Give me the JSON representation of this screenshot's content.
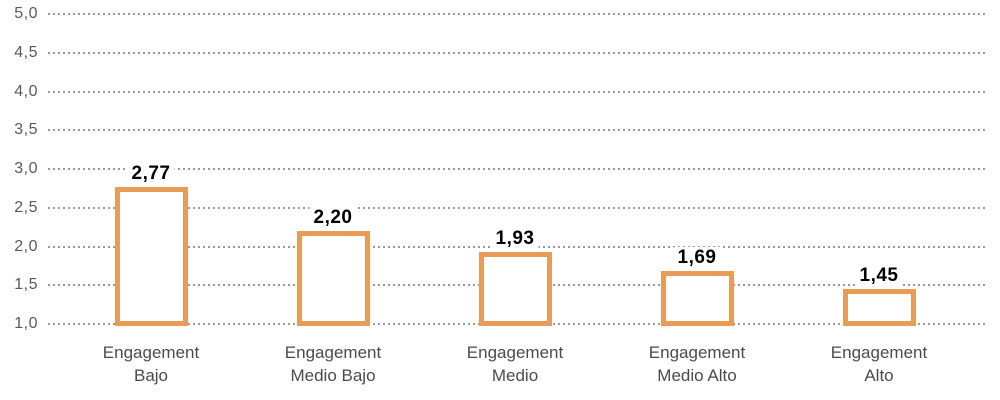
{
  "chart_data": {
    "type": "bar",
    "title": "",
    "xlabel": "",
    "ylabel": "",
    "categories": [
      "Engagement Bajo",
      "Engagement Medio Bajo",
      "Engagement Medio",
      "Engagement Medio Alto",
      "Engagement Alto"
    ],
    "categories_lines": [
      [
        "Engagement",
        "Bajo"
      ],
      [
        "Engagement",
        "Medio Bajo"
      ],
      [
        "Engagement",
        "Medio"
      ],
      [
        "Engagement",
        "Medio Alto"
      ],
      [
        "Engagement",
        "Alto"
      ]
    ],
    "values": [
      2.77,
      2.2,
      1.93,
      1.69,
      1.45
    ],
    "value_labels": [
      "2,77",
      "2,20",
      "1,93",
      "1,69",
      "1,45"
    ],
    "ylim": [
      1.0,
      5.0
    ],
    "baseline": 1.0,
    "yticks": {
      "values": [
        5.0,
        4.5,
        4.0,
        3.5,
        3.0,
        2.5,
        2.0,
        1.5,
        1.0
      ],
      "labels": [
        "5,0",
        "4,5",
        "4,0",
        "3,5",
        "3,0",
        "2,5",
        "2,0",
        "1,5",
        "1,0"
      ]
    },
    "grid": "dotted-horizontal",
    "legend": "none",
    "bar_style": "outlined",
    "colors": {
      "bar_border": "#E99C57",
      "bar_fill": "#FFFFFF",
      "gridline": "#9A9A9A",
      "tick_label": "#58595B",
      "category_label": "#4A4B4D",
      "value_label": "#000000",
      "background": "#FFFFFF"
    }
  }
}
